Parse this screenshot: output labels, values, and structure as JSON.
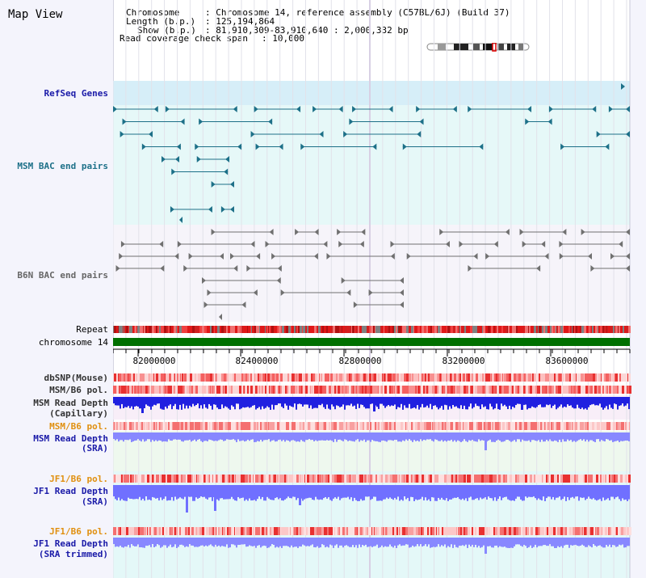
{
  "app": {
    "title": "Map View"
  },
  "info": {
    "chromosome_key": "Chromosome",
    "chromosome_val": ": Chromosome 14, reference assembly (C57BL/6J) (Build 37)",
    "length_key": "Length (b.p.)",
    "length_val": ": 125,194,864",
    "show_key": "Show (b.p.)",
    "show_val": ": 81,910,309-83,910,640 : 2,000,332 bp",
    "span_key": "Read coverage check span",
    "span_val": ": 10,000"
  },
  "tracks": {
    "refseq": "RefSeq Genes",
    "msm_bac": "MSM BAC end pairs",
    "b6n_bac": "B6N BAC end pairs",
    "repeat": "Repeat",
    "chromosome": "chromosome 14",
    "dbsnp": "dbSNP(Mouse)",
    "msm_b6_pol1": "MSM/B6 pol.",
    "msm_depth_cap_1": "MSM Read Depth",
    "msm_depth_cap_2": "(Capillary)",
    "msm_b6_pol2": "MSM/B6 pol.",
    "msm_depth_sra_1": "MSM Read Depth",
    "msm_depth_sra_2": "(SRA)",
    "jf1_b6_pol1": "JF1/B6 pol.",
    "jf1_depth_sra_1": "JF1 Read Depth",
    "jf1_depth_sra_2": "(SRA)",
    "jf1_b6_pol2": "JF1/B6 pol.",
    "jf1_depth_trim_1": "JF1 Read Depth",
    "jf1_depth_trim_2": "(SRA trimmed)"
  },
  "axis": {
    "ticks": [
      "82000000",
      "82400000",
      "82800000",
      "83200000",
      "83600000"
    ]
  },
  "colors": {
    "refseq_bg": "#d6eef8",
    "bac_bg": "#e6f8f8",
    "teal": "#1d7088",
    "b6n_bg": "#f6f4fa",
    "gray": "#707070",
    "chromosome": "#007000",
    "heat_red": "#ee2020",
    "depth_blue": "#2020e0",
    "depth_light": "#7070ff",
    "pol_label": "#e09010",
    "navy_label": "#1a1aa8"
  }
}
